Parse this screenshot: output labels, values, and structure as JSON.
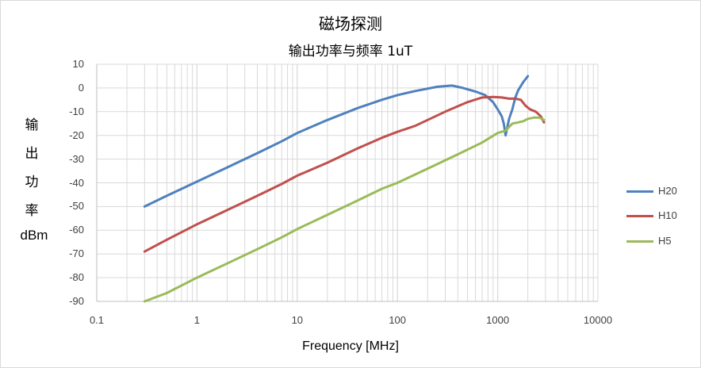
{
  "chart_data": {
    "type": "line",
    "title": "磁场探测",
    "subtitle": "输出功率与频率 1uT",
    "xlabel": "Frequency [MHz]",
    "ylabel": [
      "输",
      "出",
      "功",
      "率",
      "dBm"
    ],
    "xscale": "log",
    "xlim": [
      0.1,
      10000
    ],
    "ylim": [
      -90,
      10
    ],
    "xticks": [
      "0.1",
      "1",
      "10",
      "100",
      "1000",
      "10000"
    ],
    "yticks": [
      "10",
      "0",
      "-10",
      "-20",
      "-30",
      "-40",
      "-50",
      "-60",
      "-70",
      "-80",
      "-90"
    ],
    "grid": true,
    "legend_position": "right",
    "series": [
      {
        "name": "H20",
        "color": "#4f81bd",
        "x": [
          0.3,
          0.5,
          1,
          2,
          4,
          7,
          10,
          20,
          40,
          70,
          100,
          150,
          250,
          350,
          450,
          600,
          750,
          900,
          1000,
          1100,
          1150,
          1200,
          1300,
          1400,
          1500,
          1600,
          1800,
          2000
        ],
        "y": [
          -50,
          -45.5,
          -39.5,
          -33.5,
          -27.5,
          -22.5,
          -19,
          -13.5,
          -8.5,
          -5,
          -3,
          -1.3,
          0.5,
          1,
          0,
          -1.5,
          -3,
          -6,
          -9,
          -12,
          -15,
          -20,
          -13,
          -9,
          -4,
          -1,
          2.5,
          5
        ]
      },
      {
        "name": "H10",
        "color": "#c0504d",
        "x": [
          0.3,
          0.5,
          1,
          2,
          4,
          7,
          10,
          20,
          40,
          70,
          100,
          150,
          300,
          500,
          700,
          900,
          1100,
          1300,
          1500,
          1700,
          1900,
          2100,
          2400,
          2700,
          2900
        ],
        "y": [
          -69,
          -64,
          -57.5,
          -51.5,
          -45.5,
          -40.5,
          -37,
          -31.5,
          -25.5,
          -21,
          -18.5,
          -16,
          -10,
          -6,
          -4,
          -3.8,
          -4,
          -4.5,
          -4.5,
          -5,
          -7.5,
          -9,
          -10,
          -12,
          -14.5
        ]
      },
      {
        "name": "H5",
        "color": "#9bbb59",
        "x": [
          0.3,
          0.5,
          1,
          2,
          4,
          7,
          10,
          20,
          40,
          70,
          100,
          200,
          400,
          700,
          1000,
          1200,
          1400,
          1600,
          1800,
          2000,
          2300,
          2600,
          2900
        ],
        "y": [
          -90,
          -86.5,
          -80,
          -74,
          -68,
          -63,
          -59.5,
          -53.5,
          -47.5,
          -42.5,
          -40,
          -34,
          -28,
          -23,
          -19,
          -18,
          -15,
          -14.5,
          -14,
          -13,
          -12.5,
          -12.5,
          -13.5
        ]
      }
    ]
  }
}
